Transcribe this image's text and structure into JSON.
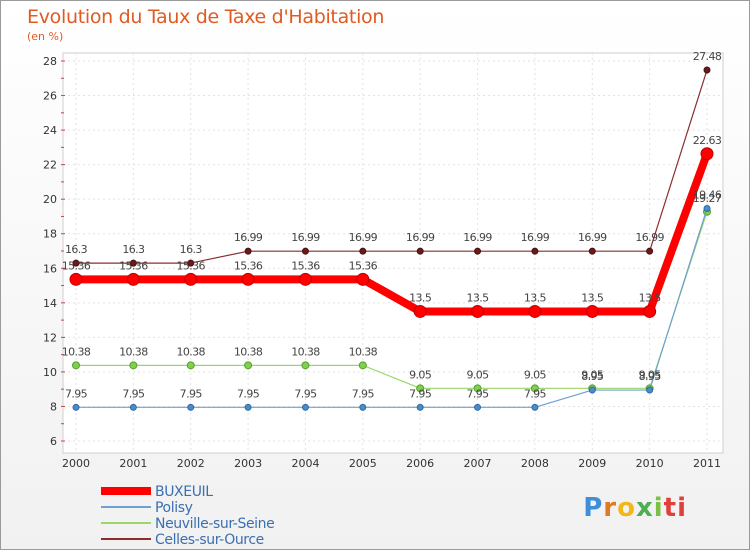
{
  "title": "Evolution du Taux de Taxe d'Habitation",
  "unit": "(en %)",
  "logo": [
    "P",
    "r",
    "o",
    "x",
    "i",
    "ti"
  ],
  "chart_data": {
    "type": "line",
    "x": [
      "2000",
      "2001",
      "2002",
      "2003",
      "2004",
      "2005",
      "2006",
      "2007",
      "2008",
      "2009",
      "2010",
      "2011"
    ],
    "ylim": [
      6,
      28
    ],
    "yticks": [
      6,
      8,
      10,
      12,
      14,
      16,
      18,
      20,
      22,
      24,
      26,
      28
    ],
    "grid": true,
    "legend": "bottom-left",
    "series": [
      {
        "name": "BUXEUIL",
        "color": "#ff0000",
        "values": [
          15.36,
          15.36,
          15.36,
          15.36,
          15.36,
          15.36,
          13.5,
          13.5,
          13.5,
          13.5,
          13.5,
          22.63
        ],
        "labels": [
          "15.36",
          "15.36",
          "15.36",
          "15.36",
          "15.36",
          "15.36",
          "13.5",
          "13.5",
          "13.5",
          "13.5",
          "13.5",
          "22.63"
        ]
      },
      {
        "name": "Polisy",
        "color": "#6fa0d0",
        "values": [
          7.95,
          7.95,
          7.95,
          7.95,
          7.95,
          7.95,
          7.95,
          7.95,
          7.95,
          8.95,
          8.95,
          19.46
        ],
        "labels": [
          "7.95",
          "7.95",
          "7.95",
          "7.95",
          "7.95",
          "7.95",
          "7.95",
          "7.95",
          "7.95",
          "8.95",
          "8.95",
          "19.46"
        ]
      },
      {
        "name": "Neuville-sur-Seine",
        "color": "#9ad86a",
        "values": [
          10.38,
          10.38,
          10.38,
          10.38,
          10.38,
          10.38,
          9.05,
          9.05,
          9.05,
          9.05,
          9.05,
          19.27
        ],
        "labels": [
          "10.38",
          "10.38",
          "10.38",
          "10.38",
          "10.38",
          "10.38",
          "9.05",
          "9.05",
          "9.05",
          "9.05",
          "9.05",
          "19.27"
        ]
      },
      {
        "name": "Celles-sur-Ource",
        "color": "#8b2e2e",
        "values": [
          16.3,
          16.3,
          16.3,
          16.99,
          16.99,
          16.99,
          16.99,
          16.99,
          16.99,
          16.99,
          16.99,
          27.48
        ],
        "labels": [
          "16.3",
          "16.3",
          "16.3",
          "16.99",
          "16.99",
          "16.99",
          "16.99",
          "16.99",
          "16.99",
          "16.99",
          "16.99",
          "27.48"
        ]
      }
    ]
  }
}
